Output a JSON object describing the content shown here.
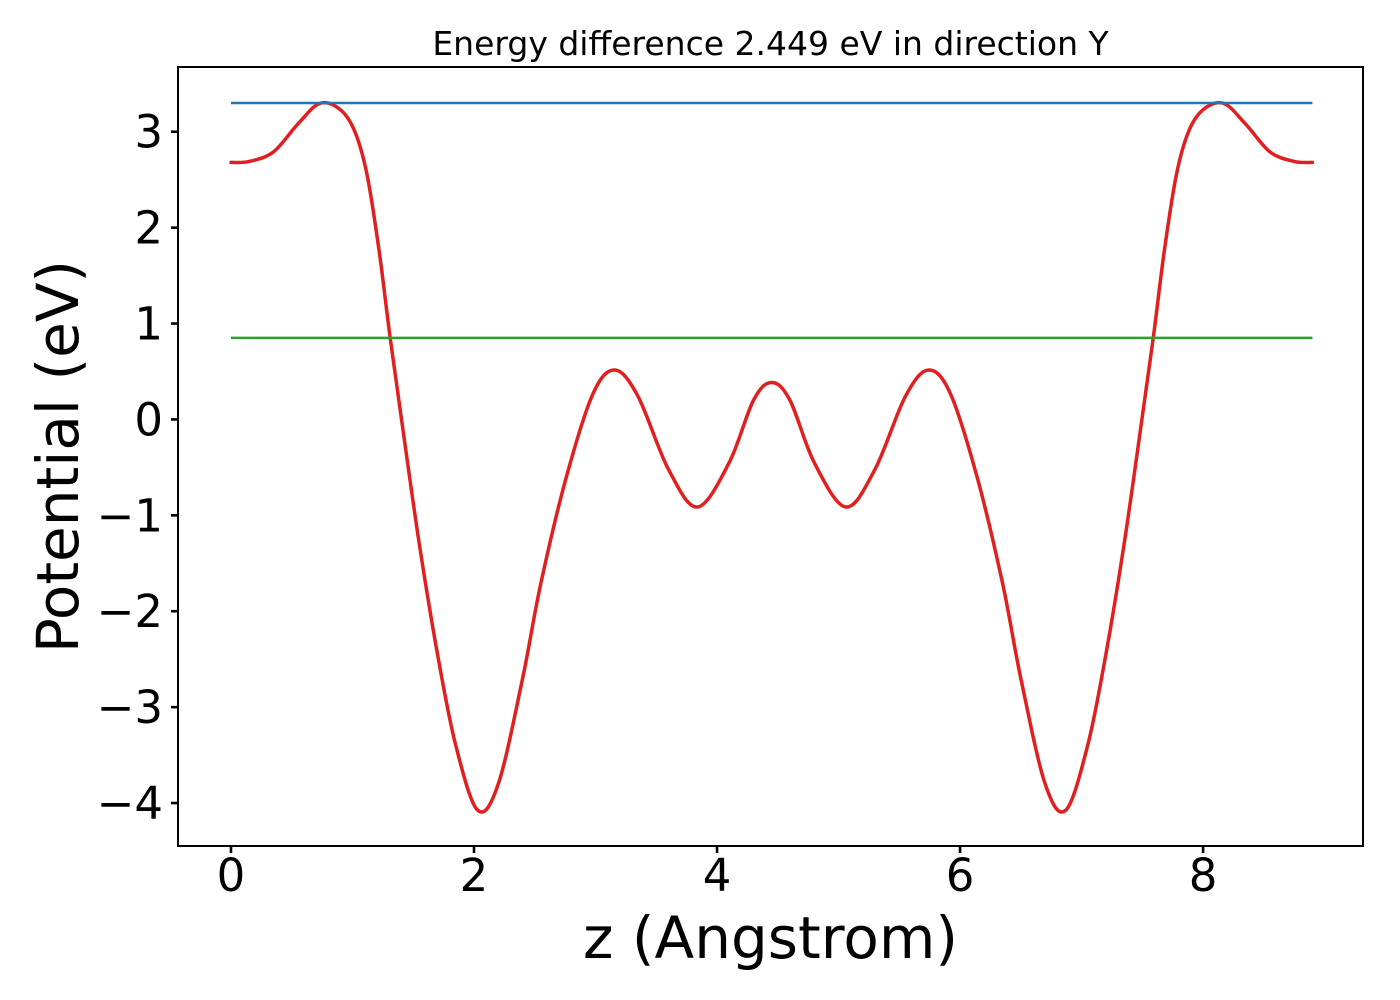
{
  "figure": {
    "background": "#ffffff",
    "axes_color": "#000000"
  },
  "chart_data": {
    "type": "line",
    "title": "Energy difference 2.449 eV in direction Y",
    "xlabel": "z (Angstrom)",
    "ylabel": "Potential (eV)",
    "xlim": [
      -0.436,
      9.316
    ],
    "ylim": [
      -4.448,
      3.675
    ],
    "grid": false,
    "legend_position": "none",
    "xticks": {
      "values": [
        0,
        2,
        4,
        6,
        8
      ],
      "labels": [
        "0",
        "2",
        "4",
        "6",
        "8"
      ]
    },
    "yticks": {
      "values": [
        3,
        2,
        1,
        0,
        -1,
        -2,
        -3,
        -4
      ],
      "labels": [
        "3",
        "2",
        "1",
        "0",
        "−1",
        "−2",
        "−3",
        "−4"
      ]
    },
    "series": [
      {
        "name": "potential-curve",
        "kind": "curve",
        "color": "#e02020",
        "linewidth": 3.5,
        "points": [
          [
            0.0,
            2.68
          ],
          [
            0.15,
            2.69
          ],
          [
            0.35,
            2.79
          ],
          [
            0.55,
            3.08
          ],
          [
            0.73,
            3.295
          ],
          [
            0.9,
            3.23
          ],
          [
            1.02,
            3.0
          ],
          [
            1.12,
            2.55
          ],
          [
            1.22,
            1.75
          ],
          [
            1.31,
            0.851
          ],
          [
            1.42,
            -0.15
          ],
          [
            1.55,
            -1.3
          ],
          [
            1.7,
            -2.45
          ],
          [
            1.85,
            -3.4
          ],
          [
            2.03,
            -4.075
          ],
          [
            2.2,
            -3.8
          ],
          [
            2.4,
            -2.7
          ],
          [
            2.55,
            -1.71
          ],
          [
            2.76,
            -0.6
          ],
          [
            2.98,
            0.27
          ],
          [
            3.16,
            0.515
          ],
          [
            3.35,
            0.24
          ],
          [
            3.6,
            -0.52
          ],
          [
            3.84,
            -0.913
          ],
          [
            4.1,
            -0.45
          ],
          [
            4.3,
            0.2
          ],
          [
            4.45,
            0.385
          ],
          [
            4.6,
            0.2
          ],
          [
            4.8,
            -0.45
          ],
          [
            5.06,
            -0.913
          ],
          [
            5.3,
            -0.52
          ],
          [
            5.55,
            0.24
          ],
          [
            5.74,
            0.515
          ],
          [
            5.92,
            0.27
          ],
          [
            6.14,
            -0.6
          ],
          [
            6.35,
            -1.71
          ],
          [
            6.5,
            -2.7
          ],
          [
            6.7,
            -3.8
          ],
          [
            6.87,
            -4.075
          ],
          [
            7.05,
            -3.4
          ],
          [
            7.2,
            -2.45
          ],
          [
            7.35,
            -1.3
          ],
          [
            7.48,
            -0.15
          ],
          [
            7.59,
            0.851
          ],
          [
            7.68,
            1.75
          ],
          [
            7.78,
            2.55
          ],
          [
            7.88,
            3.0
          ],
          [
            8.0,
            3.23
          ],
          [
            8.17,
            3.295
          ],
          [
            8.35,
            3.08
          ],
          [
            8.55,
            2.79
          ],
          [
            8.75,
            2.69
          ],
          [
            8.9,
            2.68
          ]
        ]
      },
      {
        "name": "upper-energy-level",
        "kind": "hline",
        "color": "#1f77b4",
        "linewidth": 2.5,
        "y": 3.3,
        "x_start": 0.0,
        "x_end": 8.9
      },
      {
        "name": "lower-energy-level",
        "kind": "hline",
        "color": "#2ca02c",
        "linewidth": 2.5,
        "y": 0.851,
        "x_start": 0.0,
        "x_end": 8.9
      }
    ]
  }
}
